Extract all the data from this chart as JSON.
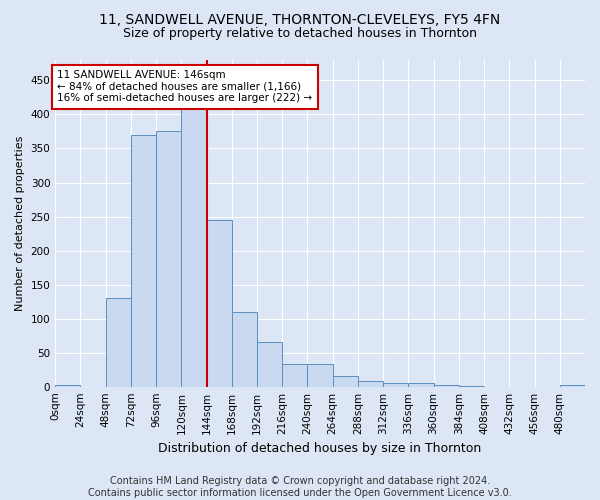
{
  "title": "11, SANDWELL AVENUE, THORNTON-CLEVELEYS, FY5 4FN",
  "subtitle": "Size of property relative to detached houses in Thornton",
  "xlabel": "Distribution of detached houses by size in Thornton",
  "ylabel": "Number of detached properties",
  "footer_line1": "Contains HM Land Registry data © Crown copyright and database right 2024.",
  "footer_line2": "Contains public sector information licensed under the Open Government Licence v3.0.",
  "bin_labels": [
    "0sqm",
    "24sqm",
    "48sqm",
    "72sqm",
    "96sqm",
    "120sqm",
    "144sqm",
    "168sqm",
    "192sqm",
    "216sqm",
    "240sqm",
    "264sqm",
    "288sqm",
    "312sqm",
    "336sqm",
    "360sqm",
    "384sqm",
    "408sqm",
    "432sqm",
    "456sqm",
    "480sqm"
  ],
  "bin_edges": [
    0,
    24,
    48,
    72,
    96,
    120,
    144,
    168,
    192,
    216,
    240,
    264,
    288,
    312,
    336,
    360,
    384,
    408,
    432,
    456,
    480
  ],
  "bar_heights": [
    3,
    0,
    130,
    370,
    375,
    410,
    245,
    110,
    65,
    33,
    33,
    16,
    8,
    5,
    5,
    2,
    1,
    0,
    0,
    0,
    3
  ],
  "bar_facecolor": "#c9d9f0",
  "bar_edgecolor": "#5a8fc0",
  "vline_x": 144,
  "vline_color": "#cc0000",
  "annotation_line1": "11 SANDWELL AVENUE: 146sqm",
  "annotation_line2": "← 84% of detached houses are smaller (1,166)",
  "annotation_line3": "16% of semi-detached houses are larger (222) →",
  "annotation_box_edgecolor": "#cc0000",
  "annotation_box_facecolor": "#ffffff",
  "ylim": [
    0,
    480
  ],
  "yticks": [
    0,
    50,
    100,
    150,
    200,
    250,
    300,
    350,
    400,
    450
  ],
  "background_color": "#dce6f5",
  "plot_background_color": "#dce6f5",
  "title_fontsize": 10,
  "subtitle_fontsize": 9,
  "xlabel_fontsize": 9,
  "ylabel_fontsize": 8,
  "tick_fontsize": 7.5,
  "footer_fontsize": 7
}
